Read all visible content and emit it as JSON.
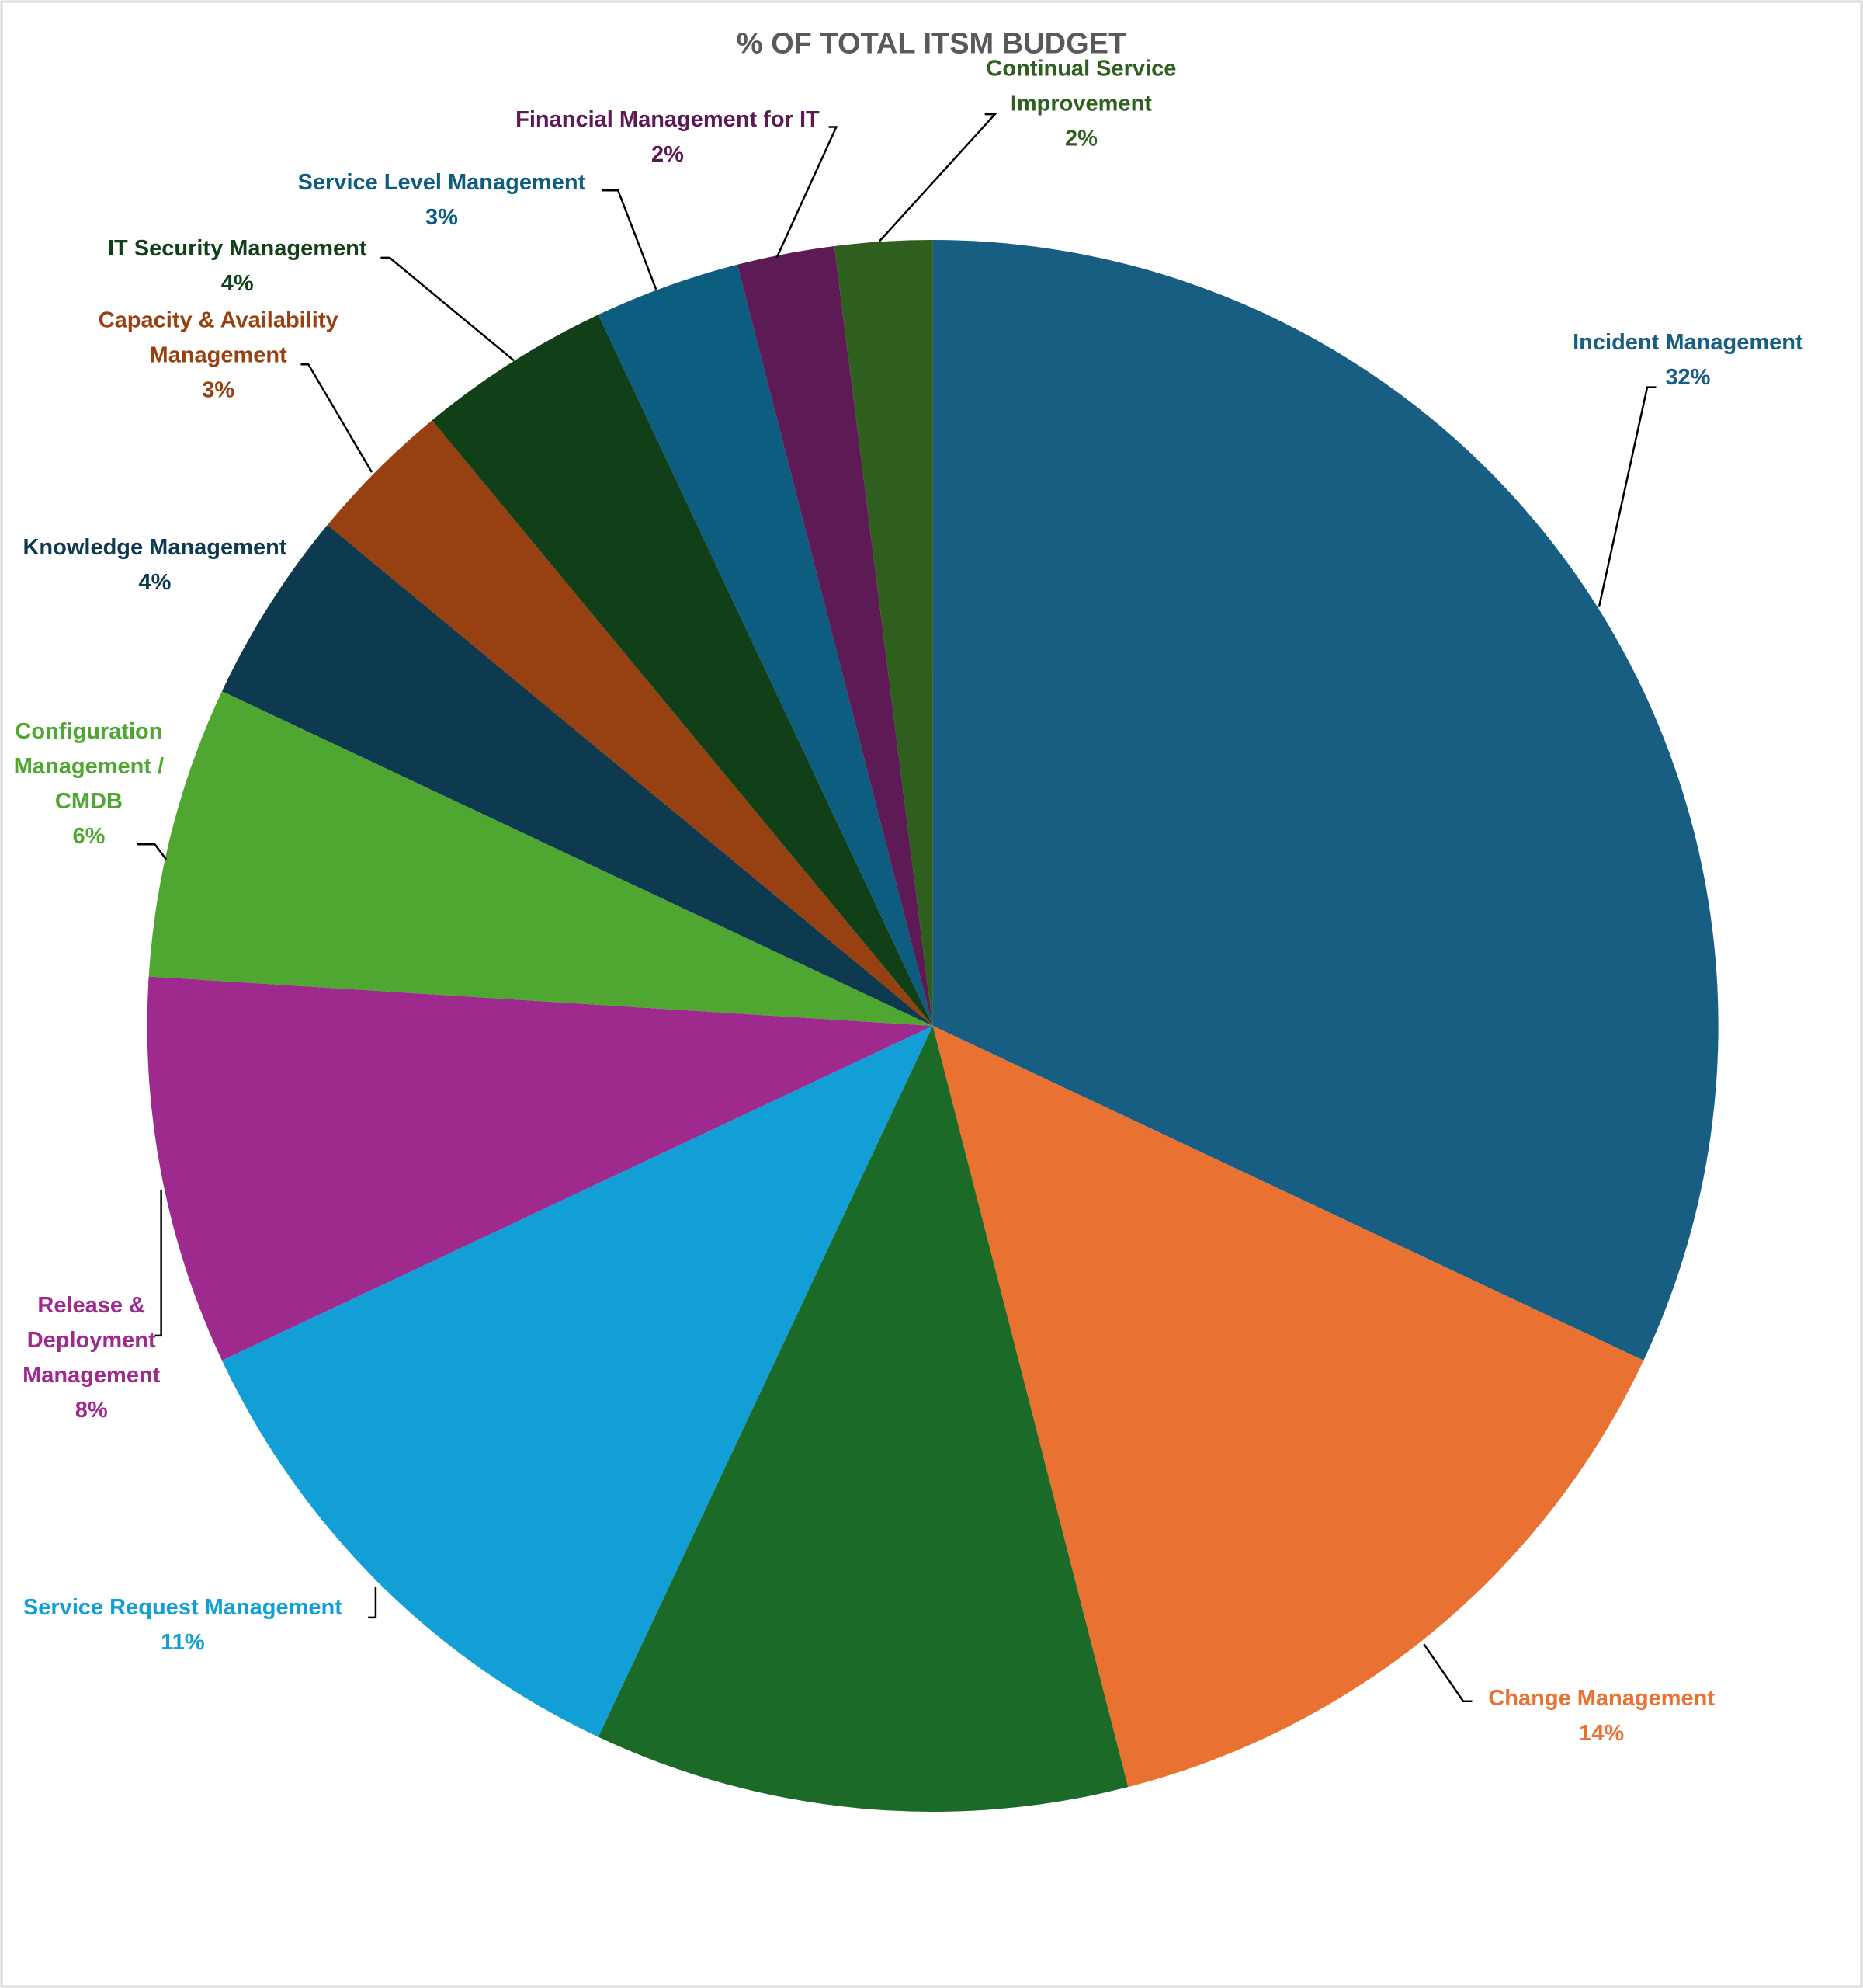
{
  "chart_data": {
    "type": "pie",
    "title": "% OF TOTAL ITSM BUDGET",
    "categories": [
      "Incident Management",
      "Change Management",
      null,
      "Service Request Management",
      "Release & Deployment Management",
      "Configuration Management / CMDB",
      "Knowledge Management",
      "Capacity & Availability Management",
      "IT Security Management",
      "Service Level Management",
      "Financial Management for IT",
      "Continual Service Improvement"
    ],
    "values": [
      32,
      14,
      11,
      11,
      8,
      6,
      4,
      3,
      4,
      3,
      2,
      2
    ],
    "value_labels": [
      "32%",
      "14%",
      null,
      "11%",
      "8%",
      "6%",
      "4%",
      "3%",
      "4%",
      "3%",
      "2%",
      "2%"
    ],
    "colors": [
      "#175e82",
      "#e97132",
      "#1b6a27",
      "#119fd6",
      "#9e2a8e",
      "#4fa731",
      "#0e3a50",
      "#974012",
      "#113f18",
      "#0c5d80",
      "#5e1a54",
      "#2e5f1e"
    ]
  }
}
